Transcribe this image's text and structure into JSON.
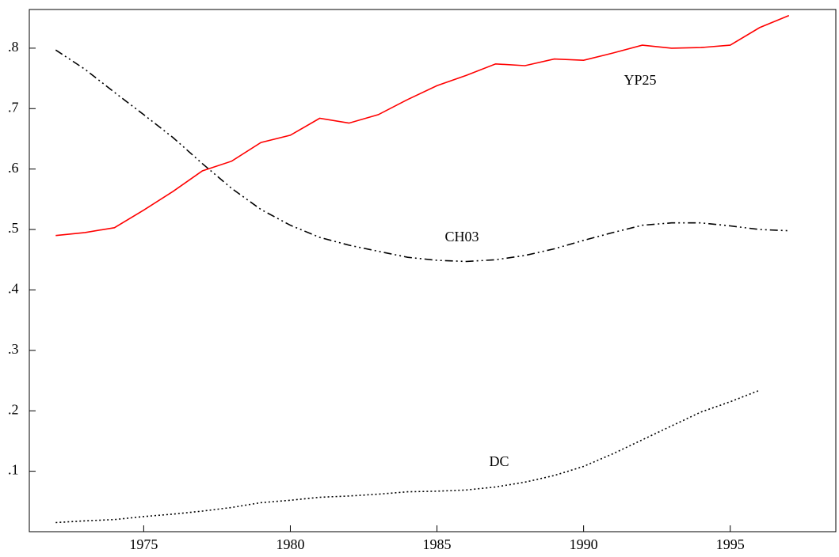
{
  "chart_data": {
    "type": "line",
    "x": [
      1972,
      1973,
      1974,
      1975,
      1976,
      1977,
      1978,
      1979,
      1980,
      1981,
      1982,
      1983,
      1984,
      1985,
      1986,
      1987,
      1988,
      1989,
      1990,
      1991,
      1992,
      1993,
      1994,
      1995,
      1996,
      1997
    ],
    "series": [
      {
        "name": "YP25",
        "color": "#ff0000",
        "style": "solid",
        "values": [
          0.49,
          0.495,
          0.503,
          0.532,
          0.563,
          0.597,
          0.613,
          0.644,
          0.656,
          0.684,
          0.676,
          0.69,
          0.715,
          0.738,
          0.755,
          0.774,
          0.771,
          0.782,
          0.78,
          0.792,
          0.805,
          0.8,
          0.801,
          0.805,
          0.834,
          0.854
        ]
      },
      {
        "name": "CH03",
        "color": "#000000",
        "style": "dashdotdot",
        "values": [
          0.797,
          0.765,
          0.727,
          0.69,
          0.652,
          0.609,
          0.568,
          0.533,
          0.507,
          0.487,
          0.474,
          0.464,
          0.454,
          0.449,
          0.447,
          0.45,
          0.457,
          0.468,
          0.482,
          0.495,
          0.507,
          0.511,
          0.511,
          0.506,
          0.5,
          0.498
        ]
      },
      {
        "name": "DC",
        "color": "#000000",
        "style": "dotted",
        "values": [
          0.015,
          0.018,
          0.02,
          0.025,
          0.029,
          0.034,
          0.04,
          0.048,
          0.052,
          0.057,
          0.059,
          0.062,
          0.066,
          0.067,
          0.069,
          0.074,
          0.082,
          0.093,
          0.108,
          0.129,
          0.152,
          0.175,
          0.198,
          0.215,
          0.234,
          null
        ]
      }
    ],
    "xlim": [
      1971.1,
      1998.6
    ],
    "ylim": [
      0,
      0.864
    ],
    "xticks": [
      1975,
      1980,
      1985,
      1990,
      1995
    ],
    "yticks": [
      {
        "value": 0.1,
        "label": ".1"
      },
      {
        "value": 0.2,
        "label": ".2"
      },
      {
        "value": 0.3,
        "label": ".3"
      },
      {
        "value": 0.4,
        "label": ".4"
      },
      {
        "value": 0.5,
        "label": ".5"
      },
      {
        "value": 0.6,
        "label": ".6"
      },
      {
        "value": 0.7,
        "label": ".7"
      },
      {
        "value": 0.8,
        "label": ".8"
      }
    ],
    "grid": false
  }
}
